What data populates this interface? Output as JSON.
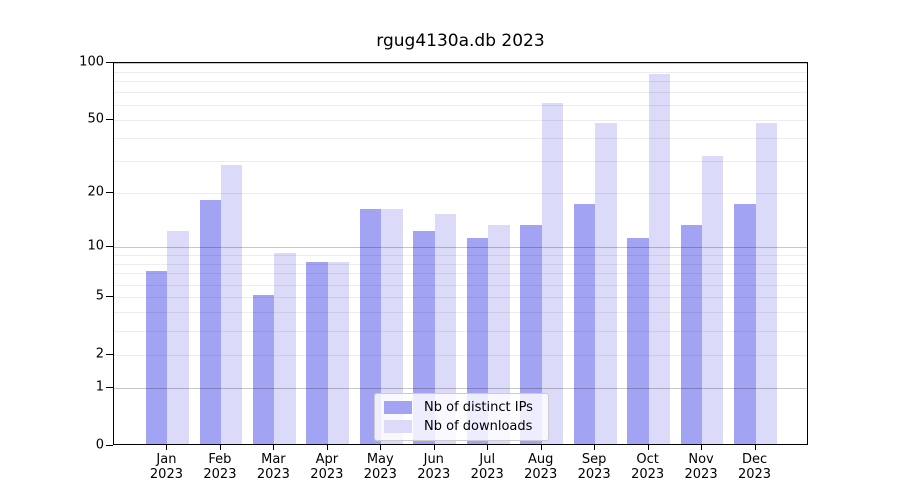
{
  "chart_data": {
    "type": "bar",
    "title": "rgug4130a.db 2023",
    "year": "2023",
    "categories": [
      "Jan",
      "Feb",
      "Mar",
      "Apr",
      "May",
      "Jun",
      "Jul",
      "Aug",
      "Sep",
      "Oct",
      "Nov",
      "Dec"
    ],
    "series": [
      {
        "name": "Nb of distinct IPs",
        "color": "#a3a3f3",
        "values": [
          7,
          18,
          5,
          8,
          16,
          12,
          11,
          13,
          17,
          11,
          13,
          17
        ]
      },
      {
        "name": "Nb of downloads",
        "color": "#dbdbf9",
        "values": [
          12,
          28,
          9,
          8,
          16,
          15,
          13,
          60,
          47,
          85,
          31,
          47
        ]
      }
    ],
    "xlabel": "",
    "ylabel": "",
    "y_scale": "log1p",
    "ylim": [
      0,
      100
    ],
    "y_ticks": [
      0,
      1,
      2,
      5,
      10,
      20,
      50,
      100
    ],
    "grid": {
      "major": [
        1,
        10,
        100
      ],
      "minor": [
        2,
        3,
        4,
        5,
        6,
        7,
        8,
        9,
        20,
        30,
        40,
        50,
        60,
        70,
        80,
        90
      ]
    },
    "legend_position": "lower center"
  }
}
